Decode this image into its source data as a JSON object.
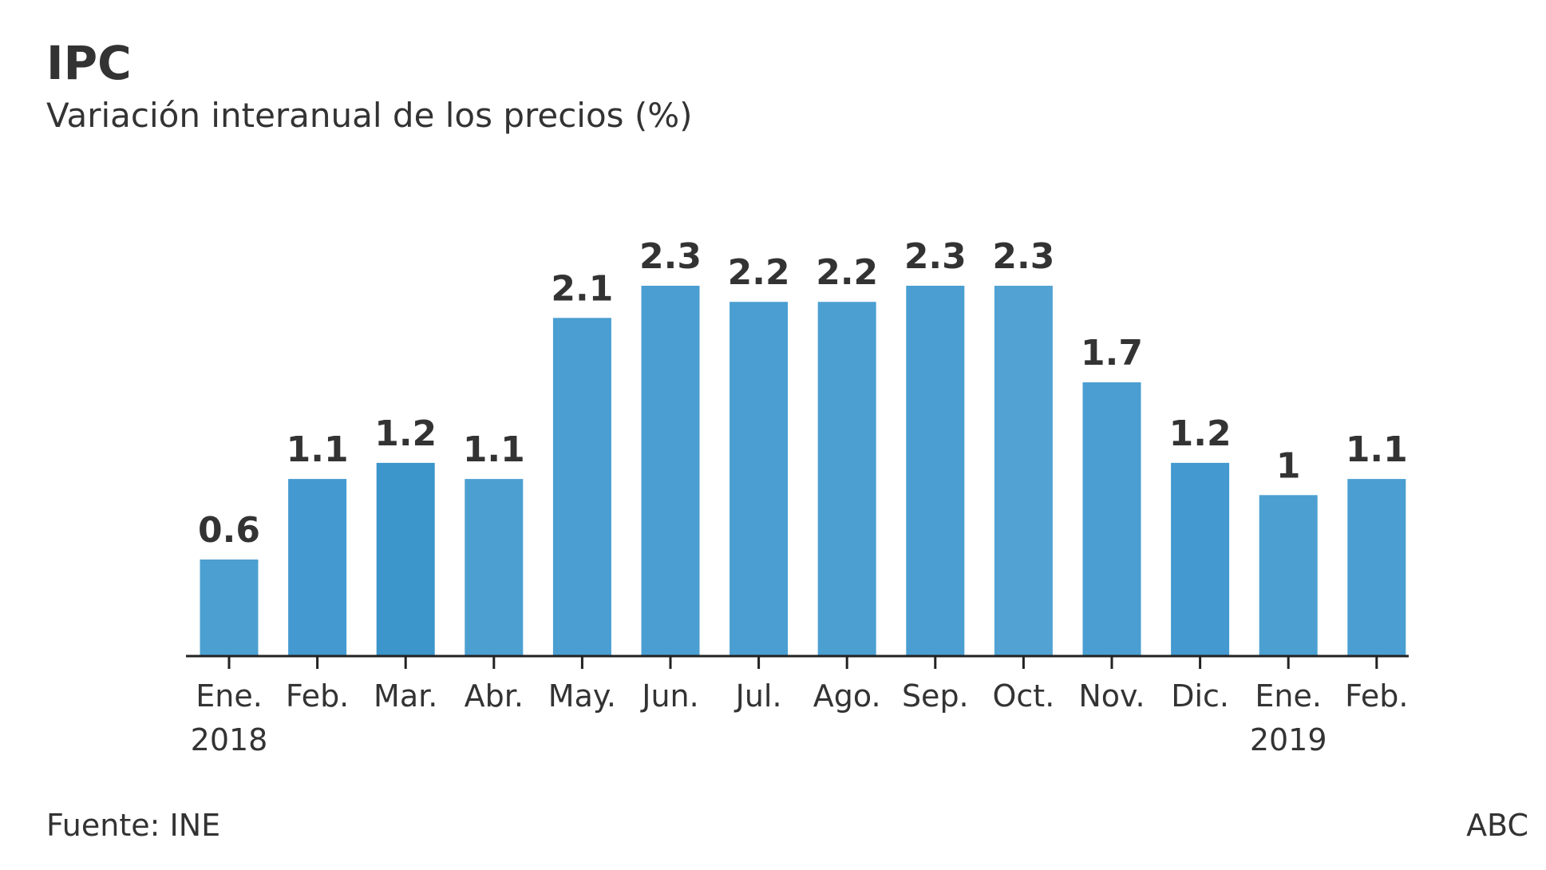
{
  "header": {
    "title": "IPC",
    "subtitle": "Variación interanual de los precios (%)"
  },
  "footer": {
    "source": "Fuente: INE",
    "credit": "ABC"
  },
  "colors": {
    "bar_shades": [
      "#4ca0d1",
      "#4499d0",
      "#3c95cb",
      "#4ca0d1",
      "#4a9ed1",
      "#4a9ed1",
      "#4a9ed1",
      "#4c9fd1",
      "#4a9ed1",
      "#52a3d3",
      "#4a9ed1",
      "#4499d0",
      "#4ca0d1",
      "#4a9ed1"
    ],
    "text": "#333333",
    "axis": "#222222"
  },
  "chart_data": {
    "type": "bar",
    "title": "IPC",
    "subtitle": "Variación interanual de los precios (%)",
    "xlabel": "",
    "ylabel": "",
    "ylim": [
      0,
      2.3
    ],
    "grid": false,
    "categories": [
      "Ene.",
      "Feb.",
      "Mar.",
      "Abr.",
      "May.",
      "Jun.",
      "Jul.",
      "Ago.",
      "Sep.",
      "Oct.",
      "Nov.",
      "Dic.",
      "Ene.",
      "Feb."
    ],
    "year_labels": [
      "2018",
      "",
      "",
      "",
      "",
      "",
      "",
      "",
      "",
      "",
      "",
      "",
      "2019",
      ""
    ],
    "values": [
      0.6,
      1.1,
      1.2,
      1.1,
      2.1,
      2.3,
      2.2,
      2.2,
      2.3,
      2.3,
      1.7,
      1.2,
      1,
      1.1
    ],
    "value_labels": [
      "0.6",
      "1.1",
      "1.2",
      "1.1",
      "2.1",
      "2.3",
      "2.2",
      "2.2",
      "2.3",
      "2.3",
      "1.7",
      "1.2",
      "1",
      "1.1"
    ]
  }
}
